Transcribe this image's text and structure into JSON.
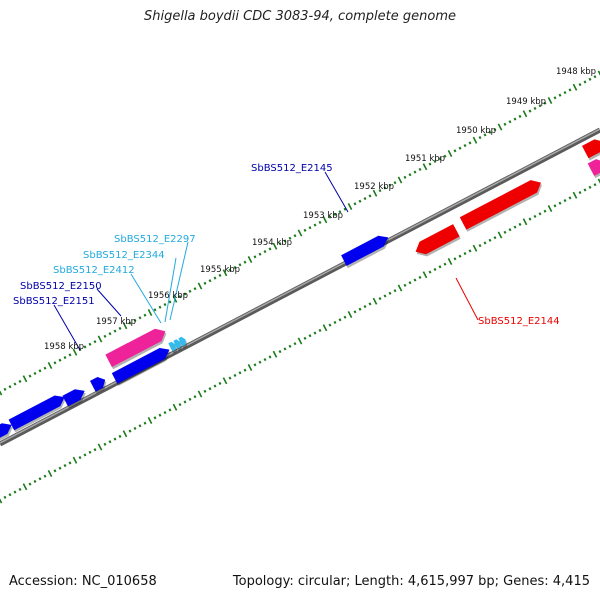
{
  "title": "Shigella boydii CDC 3083-94, complete genome",
  "footer": {
    "accession": "Accession: NC_010658",
    "summary": "Topology: circular; Length: 4,615,997 bp; Genes: 4,415"
  },
  "colors": {
    "forward_gene": "#0000ee",
    "reverse_gene": "#ee0000",
    "rna_gene": "#ee2299",
    "small_feature": "#33bbee",
    "backbone": "#888888",
    "tick": "#1a7a1a",
    "label_dark": "#0000aa",
    "label_light": "#22aadd",
    "label_red": "#ee0000"
  },
  "kbp_labels": [
    "1948 kbp",
    "1949 kbp",
    "1950 kbp",
    "1951 kbp",
    "1952 kbp",
    "1953 kbp",
    "1954 kbp",
    "1955 kbp",
    "1956 kbp",
    "1957 kbp",
    "1958 kbp"
  ],
  "gene_labels": {
    "e2145": "SbBS512_E2145",
    "e2297": "SbBS512_E2297",
    "e2344": "SbBS512_E2344",
    "e2412": "SbBS512_E2412",
    "e2150": "SbBS512_E2150",
    "e2151": "SbBS512_E2151",
    "e2144": "SbBS512_E2144"
  }
}
